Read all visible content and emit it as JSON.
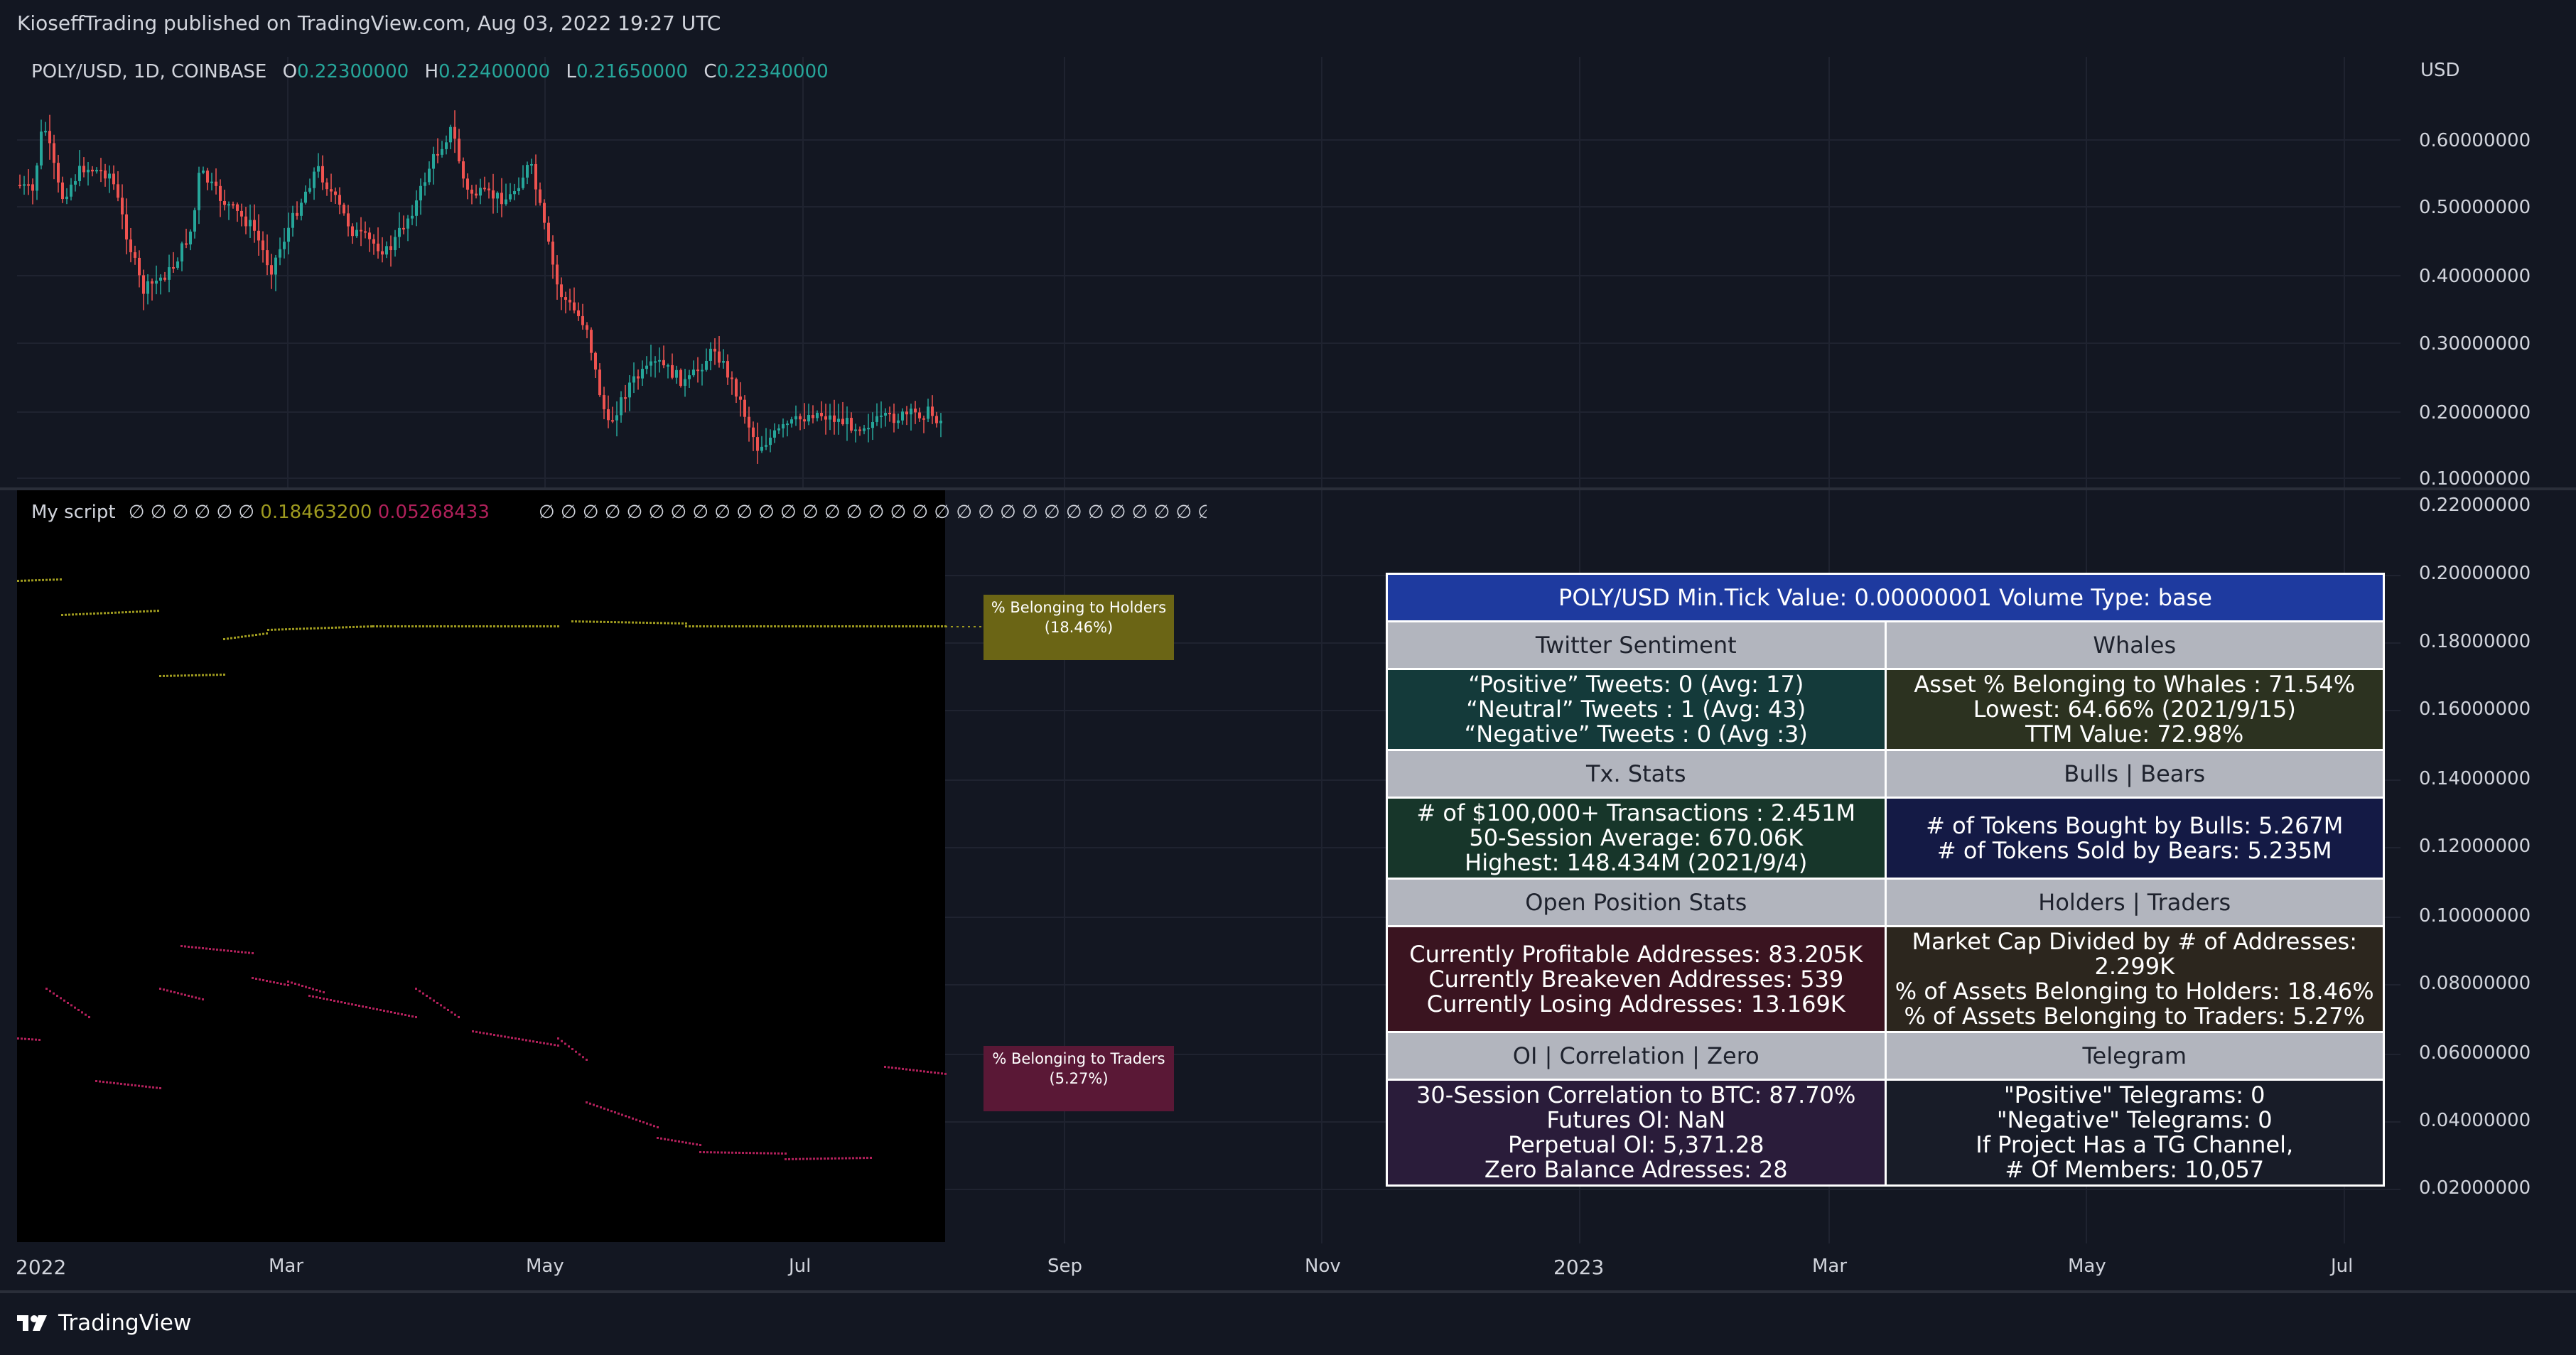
{
  "header": {
    "published": "KioseffTrading published on TradingView.com, Aug 03, 2022 19:27 UTC"
  },
  "symbol": {
    "name": "POLY/USD, 1D, COINBASE",
    "o_label": "O",
    "o": "0.22300000",
    "h_label": "H",
    "h": "0.22400000",
    "l_label": "L",
    "l": "0.21650000",
    "c_label": "C",
    "c": "0.22340000",
    "currency": "USD"
  },
  "price_axis": [
    "0.60000000",
    "0.50000000",
    "0.40000000",
    "0.30000000",
    "0.20000000",
    "0.10000000"
  ],
  "indicator": {
    "name": "My script",
    "zeros_before": "∅ ∅ ∅ ∅ ∅ ∅",
    "val1": "0.18463200",
    "val2": "0.05268433",
    "zeros_after": "∅ ∅ ∅ ∅ ∅ ∅ ∅ ∅ ∅ ∅ ∅ ∅ ∅ ∅ ∅ ∅ ∅ ∅ ∅ ∅ ∅ ∅ ∅ ∅ ∅ ∅ ∅ ∅ ∅ ∅ ∅ ∅ ∅ ∅ ∅ ∅ ∅ ∅ ∅ ∅ ∅ ∅ ∅ ∅ ∅ ∅ ∅ ∅ ∅ ∅ ∅ ∅ ∅ ∅ ∅ ∅ ∅ ∅ ∅ ∅ ∅ ∅ ∅ ∅ ∅ ∅ ∅ ∅ ∅ ∅ ∅ ∅ ∅ ∅ ∅ ∅ ∅ ∅ ∅ ∅ ∅ ∅ ∅ ∅ ∅ ∅ ∅ ∅ ∅ ∅ ∅ ∅ ∅ ∅ ∅ ∅ ∅ ∅ ∅ ∅ ∅ ∅ ∅ ∅ ∅ ∅ ∅ ∅ ∅ ∅ ∅ ∅ ∅ ∅ ∅ ∅ ∅ ∅ ∅ ∅ ∅ ∅ ∅ ∅ ∅ ∅ ∅ ∅ ∅ ∅ ∅ ∅ ∅ ∅ ∅ ∅ ∅ ∅ ∅ ∅ ∅ ∅ ∅ ∅ ∅ ∅ ∅ ∅ ∅ ∅ ∅ ∅ ∅ ∅ ∅ ∅ ∅ ∅ ∅ ∅ ∅ ∅ ∅ ∅ ∅ ∅ ∅ ∅ ∅ ∅ ∅ ∅ ∅ ∅ ∅ ∅ ∅ ∅ ∅ ∅ ∅ ∅ ∅ ∅ ∅ ∅ ∅ ∅ ∅ ∅ ∅ ∅ ∅ ∅ ∅ ∅ ∅ ∅ ∅ ∅ ∅ ∅ ∅ ∅ ∅ ∅ ∅ ∅ ∅ ∅ ∅ ∅ ∅ ∅ ∅ ∅ ∅ ∅ ∅ ∅ ∅ ∅ ∅ ∅ ∅ ∅ ∅ ∅ ∅ ∅ ∅ ∅ ∅ ∅ ∅ ∅ ∅ ∅ ∅ ∅ ∅ ∅ ∅ ∅ ∅ ∅ ∅ ∅ ∅ ∅",
    "holders_label_1": "% Belonging to Holders",
    "holders_label_2": "(18.46%)",
    "traders_label_1": "% Belonging to Traders",
    "traders_label_2": "(5.27%)"
  },
  "ind_axis": [
    "0.22000000",
    "0.20000000",
    "0.18000000",
    "0.16000000",
    "0.14000000",
    "0.12000000",
    "0.10000000",
    "0.08000000",
    "0.06000000",
    "0.04000000",
    "0.02000000"
  ],
  "time_axis": [
    "2022",
    "Mar",
    "May",
    "Jul",
    "Sep",
    "Nov",
    "2023",
    "Mar",
    "May",
    "Jul"
  ],
  "table": {
    "title": "POLY/USD Min.Tick Value: 0.00000001 Volume Type: base",
    "twitter_h": "Twitter Sentiment",
    "twitter": [
      "“Positive” Tweets: 0 (Avg: 17)",
      "“Neutral” Tweets : 1 (Avg: 43)",
      "“Negative” Tweets : 0 (Avg :3)"
    ],
    "whales_h": "Whales",
    "whales": [
      "Asset % Belonging to Whales : 71.54%",
      "Lowest: 64.66% (2021/9/15)",
      "TTM Value: 72.98%"
    ],
    "tx_h": "Tx. Stats",
    "tx": [
      "# of $100,000+ Transactions : 2.451M",
      "50-Session Average: 670.06K",
      "Highest: 148.434M (2021/9/4)"
    ],
    "bulls_h": "Bulls | Bears",
    "bulls": [
      "# of Tokens Bought by Bulls: 5.267M",
      "# of Tokens Sold by Bears: 5.235M"
    ],
    "open_h": "Open Position Stats",
    "open": [
      "Currently Profitable Addresses: 83.205K",
      "Currently Breakeven Addresses: 539",
      "Currently Losing Addresses: 13.169K"
    ],
    "holders_h": "Holders | Traders",
    "holders": [
      "Market Cap Divided by # of Addresses: 2.299K",
      "% of Assets Belonging to Holders: 18.46%",
      "% of Assets Belonging to Traders: 5.27%"
    ],
    "oi_h": "OI | Correlation | Zero",
    "oi": [
      "30-Session Correlation to BTC: 87.70%",
      "Futures OI: NaN",
      "Perpetual OI: 5,371.28",
      "Zero Balance Adresses: 28"
    ],
    "tg_h": "Telegram",
    "tg": [
      "\"Positive\" Telegrams: 0",
      "\"Negative\" Telegrams: 0",
      "If Project Has a TG Channel,",
      "# Of Members: 10,057"
    ]
  },
  "footer": {
    "brand": "TradingView"
  },
  "colors": {
    "up": "#26a69a",
    "down": "#ef5350",
    "holders": "#9e9a1f",
    "traders": "#b0205a"
  }
}
